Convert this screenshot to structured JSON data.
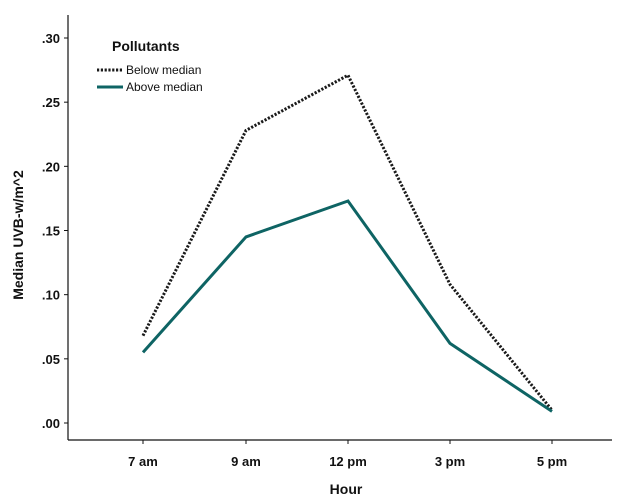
{
  "chart_data": {
    "type": "line",
    "xlabel": "Hour",
    "ylabel": "Median UVB-w/m^2",
    "categories": [
      "7 am",
      "9 am",
      "12 pm",
      "3 pm",
      "5 pm"
    ],
    "ylim": [
      0,
      0.3
    ],
    "yticks": [
      ".00",
      ".05",
      ".10",
      ".15",
      ".20",
      ".25",
      ".30"
    ],
    "legend": {
      "title": "Pollutants",
      "position": "top-left"
    },
    "grid": false,
    "series": [
      {
        "name": "Below median",
        "values": [
          0.068,
          0.228,
          0.271,
          0.108,
          0.01
        ],
        "color": "#1a1a1a",
        "style": "dotted"
      },
      {
        "name": "Above median",
        "values": [
          0.055,
          0.145,
          0.173,
          0.062,
          0.009
        ],
        "color": "#0e6464",
        "style": "solid"
      }
    ]
  }
}
